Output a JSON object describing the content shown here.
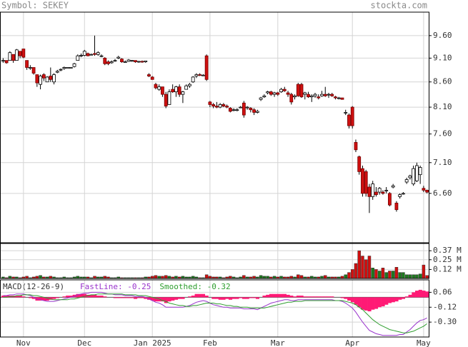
{
  "chart_data": [
    {
      "type": "candlestick",
      "title": "Symbol: SEKEY",
      "source": "stockta.com",
      "log": true,
      "grid": true,
      "up_color": "#ffffff",
      "down_color": "#d01010",
      "ylim": [
        5.87,
        10.15
      ],
      "yticks": [
        {
          "value": 9.6,
          "label": "9.60"
        },
        {
          "value": 9.1,
          "label": "9.10"
        },
        {
          "value": 8.6,
          "label": "8.60"
        },
        {
          "value": 8.1,
          "label": "8.10"
        },
        {
          "value": 7.6,
          "label": "7.60"
        },
        {
          "value": 7.1,
          "label": "7.10"
        },
        {
          "value": 6.6,
          "label": "6.60"
        }
      ],
      "open": [
        9.05,
        9.05,
        9.05,
        9.18,
        9.05,
        9.25,
        9.3,
        9.05,
        8.9,
        8.9,
        8.75,
        8.55,
        8.75,
        8.6,
        8.72,
        8.6,
        8.8,
        8.85,
        8.88,
        8.9,
        8.9,
        8.92,
        9.05,
        9.15,
        9.16,
        9.2,
        9.18,
        9.2,
        9.18,
        9.15,
        9.1,
        9.02,
        9.0,
        9.05,
        9.1,
        9.08,
        9.02,
        9.03,
        9.05,
        9.05,
        9.02,
        9.03,
        9.02,
        8.75,
        8.7,
        8.55,
        8.45,
        8.5,
        8.35,
        8.15,
        8.45,
        8.4,
        8.5,
        8.35,
        8.45,
        8.52,
        8.6,
        8.72,
        8.75,
        8.74,
        9.15,
        8.2,
        8.15,
        8.12,
        8.1,
        8.15,
        8.12,
        8.08,
        8.05,
        8.05,
        8.1,
        8.18,
        8.1,
        8.08,
        8.05,
        8.0,
        8.25,
        8.3,
        8.38,
        8.4,
        8.35,
        8.38,
        8.4,
        8.45,
        8.38,
        8.35,
        8.3,
        8.55,
        8.55,
        8.35,
        8.35,
        8.3,
        8.32,
        8.3,
        8.32,
        8.35,
        8.35,
        8.35,
        8.3,
        8.28,
        8.28,
        8.0,
        7.95,
        8.1,
        7.45,
        7.2,
        7.0,
        6.95,
        6.7,
        6.55,
        6.62,
        6.62,
        6.62,
        6.65,
        6.6,
        6.7,
        6.45,
        6.55,
        6.6,
        6.78,
        6.85,
        6.75,
        6.8,
        6.9,
        6.68,
        6.65
      ],
      "high": [
        9.1,
        9.05,
        9.25,
        9.18,
        9.3,
        9.25,
        9.3,
        9.05,
        8.95,
        8.9,
        8.75,
        8.75,
        8.78,
        8.72,
        8.9,
        8.78,
        8.85,
        8.88,
        8.92,
        8.9,
        8.9,
        9.0,
        9.18,
        9.2,
        9.28,
        9.22,
        9.2,
        9.6,
        9.25,
        9.18,
        9.12,
        9.05,
        9.05,
        9.08,
        9.15,
        9.1,
        9.05,
        9.08,
        9.06,
        9.05,
        9.04,
        9.05,
        9.04,
        8.78,
        8.72,
        8.58,
        8.55,
        8.5,
        8.4,
        8.45,
        8.55,
        8.52,
        8.55,
        8.42,
        8.55,
        8.58,
        8.72,
        8.78,
        8.78,
        8.76,
        9.18,
        8.22,
        8.18,
        8.2,
        8.18,
        8.18,
        8.15,
        8.1,
        8.08,
        8.08,
        8.12,
        8.22,
        8.12,
        8.1,
        8.08,
        8.05,
        8.3,
        8.35,
        8.42,
        8.42,
        8.4,
        8.4,
        8.48,
        8.5,
        8.42,
        8.38,
        8.35,
        8.58,
        8.58,
        8.4,
        8.4,
        8.35,
        8.38,
        8.35,
        8.42,
        8.5,
        8.38,
        8.38,
        8.32,
        8.3,
        8.28,
        8.05,
        7.98,
        8.12,
        7.5,
        7.22,
        7.05,
        6.98,
        6.75,
        6.8,
        6.7,
        6.7,
        6.65,
        6.7,
        6.62,
        6.75,
        6.48,
        6.6,
        6.62,
        6.85,
        6.9,
        7.05,
        7.1,
        7.05,
        6.72,
        6.66
      ],
      "low": [
        9.0,
        8.98,
        9.05,
        9.0,
        9.05,
        9.1,
        9.1,
        8.85,
        8.85,
        8.75,
        8.5,
        8.45,
        8.62,
        8.6,
        8.6,
        8.55,
        8.78,
        8.82,
        8.85,
        8.9,
        8.9,
        8.9,
        9.05,
        9.12,
        9.14,
        9.14,
        9.16,
        9.15,
        9.15,
        9.12,
        8.95,
        8.95,
        8.98,
        9.02,
        9.08,
        9.0,
        9.0,
        9.02,
        9.02,
        9.0,
        9.0,
        9.0,
        9.0,
        8.7,
        8.65,
        8.45,
        8.42,
        8.3,
        8.08,
        8.15,
        8.38,
        8.3,
        8.3,
        8.18,
        8.45,
        8.48,
        8.58,
        8.68,
        8.72,
        8.72,
        8.62,
        8.1,
        8.08,
        8.08,
        8.08,
        8.1,
        8.08,
        8.0,
        8.02,
        8.02,
        8.08,
        7.9,
        8.05,
        8.0,
        7.95,
        7.98,
        8.22,
        8.28,
        8.35,
        8.32,
        8.3,
        8.32,
        8.38,
        8.4,
        8.3,
        8.15,
        8.25,
        8.3,
        8.28,
        8.25,
        8.28,
        8.2,
        8.28,
        8.25,
        8.3,
        8.3,
        8.28,
        8.3,
        8.25,
        8.25,
        8.25,
        7.95,
        7.7,
        7.7,
        7.28,
        6.9,
        6.55,
        6.55,
        6.3,
        6.5,
        6.55,
        6.58,
        6.58,
        6.6,
        6.4,
        6.68,
        6.32,
        6.52,
        6.58,
        6.75,
        6.82,
        6.72,
        6.78,
        6.75,
        6.62,
        6.6
      ],
      "close": [
        9.05,
        9.0,
        9.22,
        9.05,
        9.28,
        9.15,
        9.12,
        8.9,
        8.9,
        8.78,
        8.58,
        8.72,
        8.68,
        8.7,
        8.65,
        8.75,
        8.82,
        8.86,
        8.9,
        8.9,
        8.9,
        8.98,
        9.15,
        9.16,
        9.25,
        9.15,
        9.18,
        9.18,
        9.22,
        9.15,
        8.98,
        8.98,
        9.02,
        9.05,
        9.12,
        9.02,
        9.02,
        9.06,
        9.05,
        9.02,
        9.03,
        9.02,
        9.04,
        8.72,
        8.65,
        8.48,
        8.5,
        8.35,
        8.12,
        8.4,
        8.4,
        8.5,
        8.35,
        8.4,
        8.52,
        8.55,
        8.7,
        8.75,
        8.74,
        8.74,
        8.65,
        8.15,
        8.12,
        8.1,
        8.15,
        8.12,
        8.1,
        8.02,
        8.05,
        8.05,
        8.1,
        7.95,
        8.1,
        8.05,
        8.0,
        8.02,
        8.28,
        8.32,
        8.4,
        8.35,
        8.38,
        8.35,
        8.45,
        8.42,
        8.35,
        8.2,
        8.32,
        8.32,
        8.3,
        8.38,
        8.3,
        8.32,
        8.35,
        8.28,
        8.35,
        8.32,
        8.35,
        8.32,
        8.28,
        8.28,
        8.25,
        8.0,
        7.75,
        7.75,
        7.32,
        6.95,
        6.6,
        6.6,
        6.55,
        6.75,
        6.58,
        6.68,
        6.6,
        6.65,
        6.42,
        6.72,
        6.35,
        6.58,
        6.6,
        6.82,
        6.88,
        7.0,
        7.05,
        7.02,
        6.65,
        6.62
      ]
    },
    {
      "type": "bar",
      "up_color": "#1e7a1e",
      "down_color": "#d01010",
      "grid": true,
      "ylim": [
        0,
        0.467
      ],
      "yticks": [
        {
          "value": 0.37,
          "label": "0.37 M"
        },
        {
          "value": 0.25,
          "label": "0.25 M"
        },
        {
          "value": 0.12,
          "label": "0.12 M"
        }
      ],
      "values": [
        0.02,
        0.01,
        0.03,
        0.02,
        0.02,
        0.01,
        0.02,
        0.03,
        0.01,
        0.02,
        0.03,
        0.04,
        0.02,
        0.02,
        0.03,
        0.02,
        0.01,
        0.01,
        0.02,
        0.01,
        0.01,
        0.02,
        0.03,
        0.02,
        0.02,
        0.02,
        0.01,
        0.03,
        0.02,
        0.02,
        0.03,
        0.02,
        0.01,
        0.01,
        0.02,
        0.01,
        0.01,
        0.01,
        0.01,
        0.01,
        0.01,
        0.01,
        0.02,
        0.02,
        0.03,
        0.04,
        0.03,
        0.03,
        0.04,
        0.03,
        0.02,
        0.03,
        0.02,
        0.03,
        0.02,
        0.02,
        0.03,
        0.02,
        0.01,
        0.01,
        0.05,
        0.03,
        0.02,
        0.02,
        0.02,
        0.01,
        0.02,
        0.03,
        0.02,
        0.01,
        0.02,
        0.04,
        0.02,
        0.02,
        0.03,
        0.02,
        0.04,
        0.03,
        0.03,
        0.02,
        0.03,
        0.02,
        0.03,
        0.02,
        0.02,
        0.03,
        0.02,
        0.05,
        0.04,
        0.02,
        0.02,
        0.03,
        0.02,
        0.02,
        0.03,
        0.04,
        0.02,
        0.02,
        0.02,
        0.02,
        0.03,
        0.05,
        0.08,
        0.12,
        0.2,
        0.37,
        0.3,
        0.25,
        0.3,
        0.14,
        0.12,
        0.1,
        0.14,
        0.08,
        0.1,
        0.1,
        0.15,
        0.08,
        0.08,
        0.05,
        0.05,
        0.05,
        0.05,
        0.06,
        0.18,
        0.04
      ]
    },
    {
      "type": "macd",
      "title": "MACD(12-26-9)",
      "grid": true,
      "ylim": [
        -0.48,
        0.21
      ],
      "yticks": [
        0.06,
        -0.12,
        {
          "value": -0.3,
          "label": "-0.30"
        }
      ],
      "categories": [
        null,
        null,
        null,
        null,
        null,
        null,
        "Nov",
        null,
        null,
        null,
        null,
        null,
        null,
        null,
        null,
        null,
        null,
        null,
        null,
        null,
        null,
        null,
        null,
        null,
        "Dec",
        null,
        null,
        null,
        null,
        null,
        null,
        null,
        null,
        null,
        null,
        null,
        null,
        null,
        null,
        null,
        null,
        null,
        null,
        null,
        "Jan 2025",
        null,
        null,
        null,
        null,
        null,
        null,
        null,
        null,
        null,
        null,
        null,
        null,
        null,
        null,
        null,
        null,
        "Feb",
        null,
        null,
        null,
        null,
        null,
        null,
        null,
        null,
        null,
        null,
        null,
        null,
        null,
        null,
        null,
        null,
        null,
        null,
        null,
        "Mar",
        null,
        null,
        null,
        null,
        null,
        null,
        null,
        null,
        null,
        null,
        null,
        null,
        null,
        null,
        null,
        null,
        null,
        null,
        null,
        null,
        null,
        "Apr",
        null,
        null,
        null,
        null,
        null,
        null,
        null,
        null,
        null,
        null,
        null,
        null,
        null,
        null,
        null,
        null,
        null,
        null,
        null,
        null,
        "May",
        null
      ],
      "series": [
        {
          "name": "FastLine: -0.25",
          "color": "#9933cc",
          "values": [
            0.02,
            0.02,
            0.03,
            0.03,
            0.04,
            0.04,
            0.04,
            0.03,
            0.02,
            0.0,
            -0.02,
            -0.03,
            -0.04,
            -0.05,
            -0.05,
            -0.05,
            -0.04,
            -0.03,
            -0.02,
            -0.01,
            0.0,
            0.01,
            0.03,
            0.04,
            0.05,
            0.05,
            0.06,
            0.06,
            0.06,
            0.06,
            0.05,
            0.04,
            0.04,
            0.03,
            0.03,
            0.03,
            0.02,
            0.02,
            0.02,
            0.01,
            0.01,
            0.01,
            0.0,
            -0.02,
            -0.04,
            -0.06,
            -0.07,
            -0.09,
            -0.12,
            -0.12,
            -0.12,
            -0.12,
            -0.12,
            -0.12,
            -0.11,
            -0.1,
            -0.08,
            -0.06,
            -0.05,
            -0.04,
            -0.05,
            -0.07,
            -0.09,
            -0.1,
            -0.11,
            -0.12,
            -0.12,
            -0.13,
            -0.13,
            -0.13,
            -0.13,
            -0.14,
            -0.14,
            -0.14,
            -0.14,
            -0.15,
            -0.13,
            -0.11,
            -0.09,
            -0.07,
            -0.06,
            -0.05,
            -0.04,
            -0.03,
            -0.03,
            -0.04,
            -0.04,
            -0.03,
            -0.03,
            -0.03,
            -0.03,
            -0.03,
            -0.03,
            -0.03,
            -0.03,
            -0.03,
            -0.03,
            -0.03,
            -0.04,
            -0.04,
            -0.05,
            -0.07,
            -0.1,
            -0.13,
            -0.18,
            -0.24,
            -0.3,
            -0.35,
            -0.4,
            -0.42,
            -0.44,
            -0.45,
            -0.46,
            -0.46,
            -0.46,
            -0.46,
            -0.46,
            -0.45,
            -0.45,
            -0.42,
            -0.39,
            -0.35,
            -0.31,
            -0.28,
            -0.27,
            -0.25
          ]
        },
        {
          "name": "Smoothed: -0.32",
          "color": "#2e9e2e",
          "values": [
            0.0,
            0.0,
            0.01,
            0.01,
            0.02,
            0.02,
            0.03,
            0.03,
            0.03,
            0.02,
            0.02,
            0.01,
            0.0,
            -0.01,
            -0.02,
            -0.03,
            -0.03,
            -0.03,
            -0.03,
            -0.03,
            -0.02,
            -0.02,
            -0.01,
            0.0,
            0.01,
            0.02,
            0.03,
            0.03,
            0.04,
            0.04,
            0.04,
            0.04,
            0.04,
            0.04,
            0.04,
            0.04,
            0.03,
            0.03,
            0.03,
            0.03,
            0.02,
            0.02,
            0.02,
            0.01,
            0.0,
            -0.01,
            -0.02,
            -0.04,
            -0.05,
            -0.07,
            -0.08,
            -0.09,
            -0.1,
            -0.1,
            -0.11,
            -0.11,
            -0.1,
            -0.1,
            -0.09,
            -0.08,
            -0.07,
            -0.07,
            -0.07,
            -0.08,
            -0.08,
            -0.09,
            -0.1,
            -0.1,
            -0.11,
            -0.11,
            -0.12,
            -0.12,
            -0.12,
            -0.13,
            -0.13,
            -0.13,
            -0.13,
            -0.13,
            -0.12,
            -0.11,
            -0.1,
            -0.09,
            -0.08,
            -0.07,
            -0.06,
            -0.06,
            -0.05,
            -0.05,
            -0.05,
            -0.04,
            -0.04,
            -0.04,
            -0.04,
            -0.04,
            -0.04,
            -0.04,
            -0.04,
            -0.04,
            -0.04,
            -0.04,
            -0.04,
            -0.05,
            -0.06,
            -0.07,
            -0.09,
            -0.12,
            -0.15,
            -0.19,
            -0.23,
            -0.27,
            -0.3,
            -0.33,
            -0.35,
            -0.37,
            -0.39,
            -0.4,
            -0.41,
            -0.42,
            -0.43,
            -0.43,
            -0.42,
            -0.41,
            -0.39,
            -0.37,
            -0.35,
            -0.32
          ]
        }
      ],
      "histogram": {
        "color": "#ff1a75",
        "values": [
          0.02,
          0.02,
          0.02,
          0.02,
          0.02,
          0.02,
          0.01,
          0,
          -0.01,
          -0.02,
          -0.04,
          -0.04,
          -0.04,
          -0.04,
          -0.03,
          -0.02,
          -0.01,
          0,
          0.01,
          0.02,
          0.02,
          0.03,
          0.04,
          0.04,
          0.04,
          0.03,
          0.03,
          0.03,
          0.02,
          0.02,
          0.01,
          0,
          0,
          -0.01,
          -0.01,
          -0.01,
          -0.01,
          -0.01,
          -0.01,
          -0.02,
          -0.01,
          -0.01,
          -0.02,
          -0.03,
          -0.04,
          -0.05,
          -0.05,
          -0.05,
          -0.07,
          -0.05,
          -0.04,
          -0.03,
          -0.02,
          -0.02,
          0,
          0.01,
          0.02,
          0.04,
          0.04,
          0.04,
          0.02,
          0,
          -0.02,
          -0.02,
          -0.03,
          -0.03,
          -0.02,
          -0.03,
          -0.02,
          -0.02,
          -0.01,
          -0.02,
          -0.02,
          -0.01,
          -0.01,
          -0.02,
          0,
          0.02,
          0.03,
          0.04,
          0.04,
          0.04,
          0.04,
          0.04,
          0.03,
          0.02,
          0.01,
          0.02,
          0.02,
          0.01,
          0.01,
          0.01,
          0.01,
          0.01,
          0.01,
          0.01,
          0.01,
          0.01,
          0,
          0,
          -0.01,
          -0.02,
          -0.04,
          -0.06,
          -0.09,
          -0.12,
          -0.15,
          -0.16,
          -0.17,
          -0.15,
          -0.14,
          -0.12,
          -0.11,
          -0.09,
          -0.07,
          -0.06,
          -0.05,
          -0.03,
          -0.02,
          0.01,
          0.03,
          0.06,
          0.08,
          0.09,
          0.08,
          0.07
        ]
      }
    }
  ]
}
